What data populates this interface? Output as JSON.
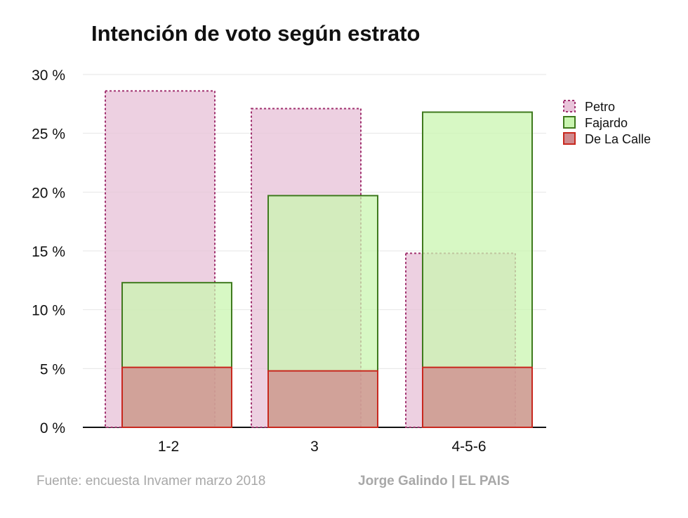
{
  "chart_data": {
    "type": "bar",
    "title": "Intención de voto según estrato",
    "categories": [
      "1-2",
      "3",
      "4-5-6"
    ],
    "series": [
      {
        "name": "Petro",
        "values": [
          28.6,
          27.1,
          14.8
        ],
        "fill": "#e9c4da",
        "stroke": "#a0306e",
        "dashed": true
      },
      {
        "name": "Fajardo",
        "values": [
          12.3,
          19.7,
          26.8
        ],
        "fill": "#c9f5b0",
        "stroke": "#3f7a1e",
        "dashed": false
      },
      {
        "name": "De La Calle",
        "values": [
          5.1,
          4.8,
          5.1
        ],
        "fill": "#d08a8e",
        "stroke": "#c8281e",
        "dashed": false
      }
    ],
    "yticks": [
      "0 %",
      "5 %",
      "10 %",
      "15 %",
      "20 %",
      "25 %",
      "30 %"
    ],
    "ylim": [
      0,
      30
    ],
    "grid": true,
    "legend": "right",
    "source": "Fuente: encuesta Invamer marzo 2018",
    "credit": "Jorge Galindo | EL PAIS"
  }
}
